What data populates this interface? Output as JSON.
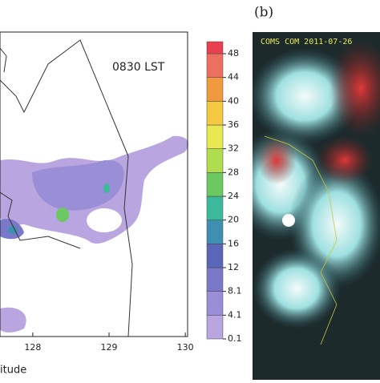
{
  "map_panel": {
    "annotation": "0830 LST",
    "x_label": "itude",
    "xlim": [
      127.57,
      130.03
    ],
    "xticks": [
      128,
      129,
      130
    ]
  },
  "colorbar": {
    "levels": [
      0.1,
      4.1,
      8.1,
      12,
      16,
      20,
      24,
      28,
      32,
      36,
      40,
      44,
      48
    ],
    "colors": [
      "#b9a6e0",
      "#9a8ed6",
      "#7a78c8",
      "#5a66b8",
      "#3f8fb0",
      "#3cb89a",
      "#6cc860",
      "#b0dc50",
      "#e8e850",
      "#f5c842",
      "#f09a40",
      "#ec7060",
      "#e84050"
    ]
  },
  "satellite_panel": {
    "label": "(b)",
    "caption": "COMS COM 2011-07-26"
  }
}
